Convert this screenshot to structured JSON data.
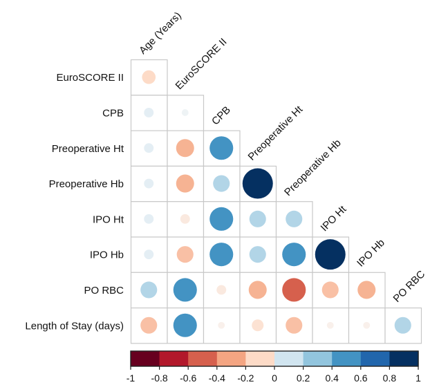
{
  "chart_data": {
    "type": "heatmap",
    "subtype": "correlation-circles-lower-triangle",
    "title": "",
    "variables": [
      "Age (Years)",
      "EuroSCORE II",
      "CPB",
      "Preoperative Ht",
      "Preoperative Hb",
      "IPO Ht",
      "IPO Hb",
      "PO RBC"
    ],
    "row_labels": [
      "EuroSCORE II",
      "CPB",
      "Preoperative Ht",
      "Preoperative Hb",
      "IPO Ht",
      "IPO Hb",
      "PO RBC",
      "Length of Stay (days)"
    ],
    "column_labels": [
      "Age (Years)",
      "EuroSCORE II",
      "CPB",
      "Preoperative Ht",
      "Preoperative Hb",
      "IPO Ht",
      "IPO Hb",
      "PO RBC"
    ],
    "matrix": [
      [
        -0.2
      ],
      [
        0.1,
        0.05
      ],
      [
        0.1,
        -0.35,
        0.6
      ],
      [
        0.1,
        -0.35,
        0.3,
        1.0
      ],
      [
        0.1,
        -0.1,
        0.6,
        0.3,
        0.3
      ],
      [
        0.1,
        -0.3,
        0.6,
        0.3,
        0.6,
        1.0
      ],
      [
        0.3,
        0.6,
        -0.1,
        -0.35,
        -0.6,
        -0.3,
        -0.35
      ],
      [
        -0.3,
        0.6,
        -0.05,
        -0.15,
        -0.3,
        -0.05,
        -0.05,
        0.3
      ]
    ],
    "colorbar": {
      "range": [
        -1,
        1
      ],
      "tick_labels": [
        "-1",
        "-0.8",
        "-0.6",
        "-0.4",
        "-0.2",
        "0",
        "0.2",
        "0.4",
        "0.6",
        "0.8",
        "1"
      ],
      "colors": [
        "#67001f",
        "#b2182b",
        "#d6604d",
        "#f4a582",
        "#fddbc7",
        "#e1edf5",
        "#d1e5f0",
        "#92c5de",
        "#4393c3",
        "#2166ac",
        "#053061"
      ]
    }
  }
}
